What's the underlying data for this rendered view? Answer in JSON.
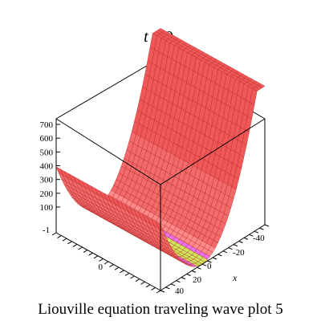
{
  "title": {
    "var": "t",
    "eq": " = 0."
  },
  "caption": "Liouville equation  traveling wave plot 5",
  "chart_data": {
    "type": "surface3d",
    "title": "t = 0.",
    "xlabel": "x",
    "ylabel": "",
    "zlabel": "",
    "x_ticks": [
      "-40",
      "-20",
      "0",
      "20",
      "40"
    ],
    "y_ticks": [
      "-1",
      "0"
    ],
    "z_ticks": [
      "100",
      "200",
      "300",
      "400",
      "500",
      "600",
      "700"
    ],
    "xlim": [
      -50,
      50
    ],
    "ylim": [
      -1,
      1
    ],
    "zlim": [
      0,
      750
    ],
    "surface": {
      "description_values": "z ≈ 0 along valley x ≈ 10, rising to ≈ 700 at x = -50 and ≈ 360 at x = 50",
      "x": [
        -50,
        -40,
        -30,
        -20,
        -10,
        0,
        10,
        20,
        30,
        40,
        50
      ],
      "z": [
        700,
        560,
        420,
        290,
        170,
        70,
        5,
        60,
        160,
        260,
        360
      ]
    },
    "colors": {
      "surface": "#f05a5a",
      "mesh": "#b02020",
      "valley": "#c8e650",
      "box": "#000000"
    }
  }
}
